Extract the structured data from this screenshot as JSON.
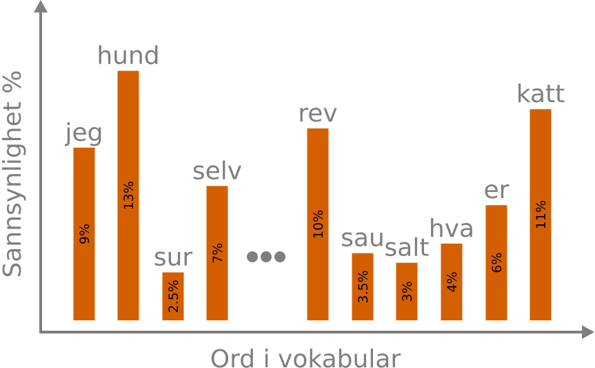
{
  "chart_data": {
    "type": "bar",
    "xlabel": "Ord i vokabular",
    "ylabel": "Sannsynlighet %",
    "bar_color": "#d45f00",
    "axis_color": "#7f7f7f",
    "grid": false,
    "legend": "none",
    "ylim": [
      0,
      14.5
    ],
    "ellipsis_after_index": 3,
    "categories": [
      "jeg",
      "hund",
      "sur",
      "selv",
      "rev",
      "sau",
      "salt",
      "hva",
      "er",
      "katt"
    ],
    "values": [
      9,
      13,
      2.5,
      7,
      10,
      3.5,
      3,
      4,
      6,
      11
    ],
    "value_labels": [
      "9%",
      "13%",
      "2.5%",
      "7%",
      "10%",
      "3.5%",
      "3%",
      "4%",
      "6%",
      "11%"
    ]
  }
}
